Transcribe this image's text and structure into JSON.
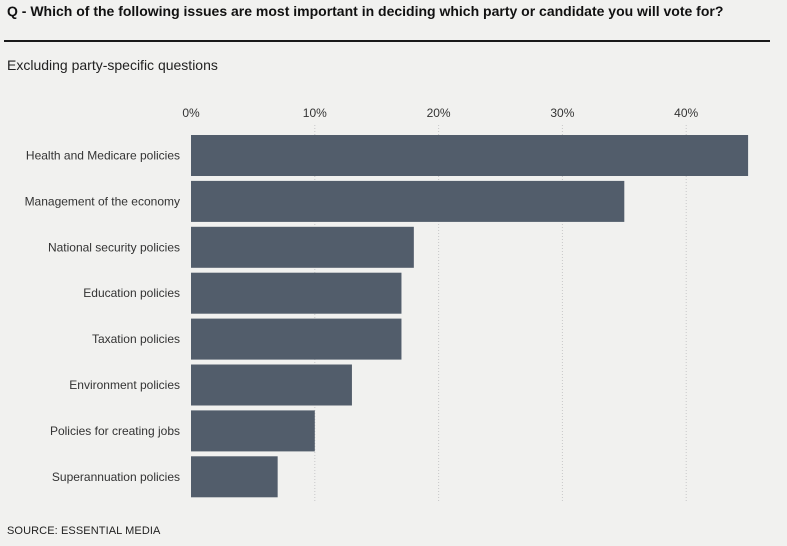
{
  "header": {
    "question": "Q - Which of the following issues are most important in deciding which party or candidate you will vote for?",
    "subtitle": "Excluding party-specific questions"
  },
  "footer": {
    "source": "SOURCE: ESSENTIAL MEDIA"
  },
  "colors": {
    "bar": "#525d6b",
    "gridline": "#c8c8c8",
    "background": "#f1f1ef"
  },
  "chart_data": {
    "type": "bar",
    "orientation": "horizontal",
    "title": "Q - Which of the following issues are most important in deciding which party or candidate you will vote for?",
    "subtitle": "Excluding party-specific questions",
    "xlabel": "",
    "ylabel": "",
    "xlim": [
      0,
      45
    ],
    "ticks": [
      0,
      10,
      20,
      30,
      40
    ],
    "tick_labels": [
      "0%",
      "10%",
      "20%",
      "30%",
      "40%"
    ],
    "grid": true,
    "categories": [
      "Health and Medicare policies",
      "Management of the economy",
      "National security policies",
      "Education policies",
      "Taxation policies",
      "Environment policies",
      "Policies for creating jobs",
      "Superannuation policies"
    ],
    "values": [
      45,
      35,
      18,
      17,
      17,
      13,
      10,
      7
    ],
    "unit": "%"
  }
}
